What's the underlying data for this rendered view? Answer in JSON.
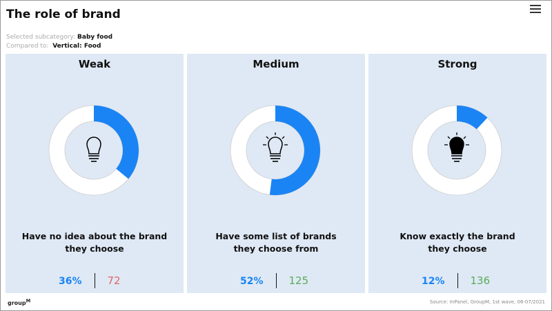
{
  "title": "The role of brand",
  "meta": {
    "subcategory_label": "Selected subcategory:",
    "subcategory_value": "Baby food",
    "compared_label": "Compared to:",
    "compared_value": "Vertical: Food"
  },
  "accent": "#1a84f5",
  "panels": [
    {
      "heading": "Weak",
      "line1": "Have no idea about the brand",
      "line2": "they choose",
      "percent": "36%",
      "percent_value": 36,
      "count": "72",
      "count_color": "#e06666",
      "icon": "lightbulb-outline-icon"
    },
    {
      "heading": "Medium",
      "line1": "Have some list of brands",
      "line2": "they choose from",
      "percent": "52%",
      "percent_value": 52,
      "count": "125",
      "count_color": "#5aaa5a",
      "icon": "lightbulb-glowing-icon"
    },
    {
      "heading": "Strong",
      "line1": "Know exactly the brand",
      "line2": "they choose",
      "percent": "12%",
      "percent_value": 12,
      "count": "136",
      "count_color": "#5aaa5a",
      "icon": "lightbulb-filled-icon"
    }
  ],
  "footer": {
    "logo": "groupM",
    "source": "Source: mPanel, GroupM, 1st wave, 06-07/2021"
  }
}
